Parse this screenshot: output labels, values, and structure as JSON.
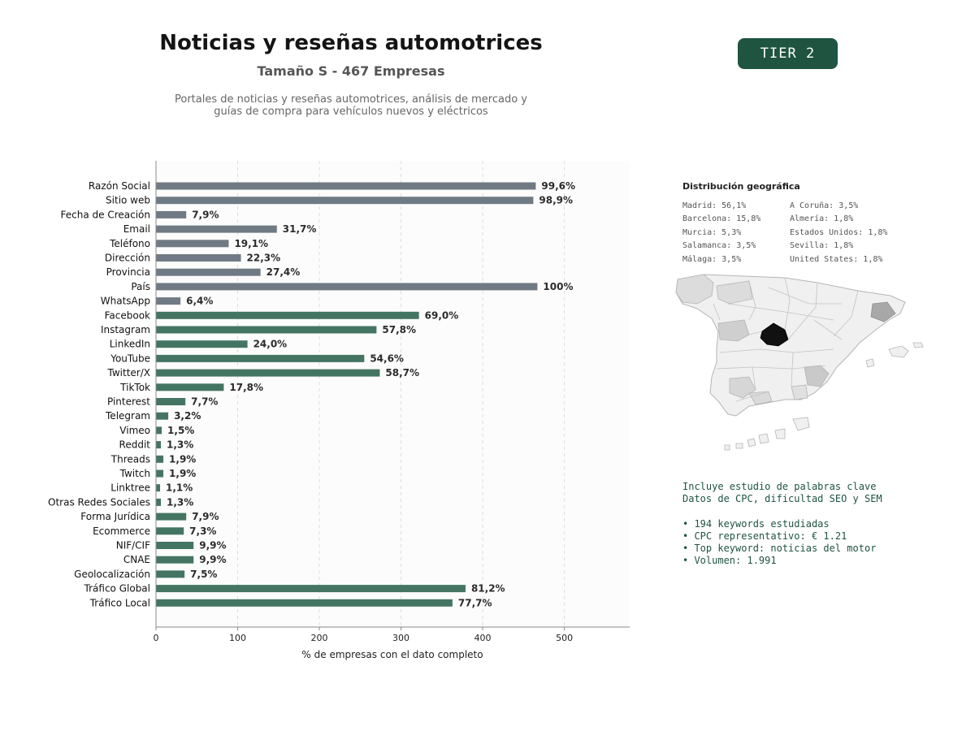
{
  "header": {
    "title": "Noticias y reseñas automotrices",
    "subtitle": "Tamaño S - 467 Empresas",
    "description_line1": "Portales de noticias y reseñas automotrices, análisis de mercado y",
    "description_line2": "guías de compra para vehículos nuevos y eléctricos",
    "tier_label": "TIER 2"
  },
  "colors": {
    "tier_bg": "#1e5440",
    "bar_gray": "#6f7a84",
    "bar_green": "#447563",
    "map_highlight": "#111111",
    "keywords_text": "#1e5440"
  },
  "chart_data": {
    "type": "bar",
    "orientation": "horizontal",
    "xlabel": "% de empresas con el dato completo",
    "ylabel": "",
    "xlim": [
      0,
      580
    ],
    "xticks": [
      0,
      100,
      200,
      300,
      400,
      500
    ],
    "grid": "vertical dashed",
    "categories": [
      "Razón Social",
      "Sitio web",
      "Fecha de Creación",
      "Email",
      "Teléfono",
      "Dirección",
      "Provincia",
      "País",
      "WhatsApp",
      "Facebook",
      "Instagram",
      "LinkedIn",
      "YouTube",
      "Twitter/X",
      "TikTok",
      "Pinterest",
      "Telegram",
      "Vimeo",
      "Reddit",
      "Threads",
      "Twitch",
      "Linktree",
      "Otras Redes Sociales",
      "Forma Jurídica",
      "Ecommerce",
      "NIF/CIF",
      "CNAE",
      "Geolocalización",
      "Tráfico Global",
      "Tráfico Local"
    ],
    "values": [
      465,
      462,
      37,
      148,
      89,
      104,
      128,
      467,
      30,
      322,
      270,
      112,
      255,
      274,
      83,
      36,
      15,
      7,
      6,
      9,
      9,
      5,
      6,
      37,
      34,
      46,
      46,
      35,
      379,
      363
    ],
    "labels": [
      "99,6%",
      "98,9%",
      "7,9%",
      "31,7%",
      "19,1%",
      "22,3%",
      "27,4%",
      "100%",
      "6,4%",
      "69,0%",
      "57,8%",
      "24,0%",
      "54,6%",
      "58,7%",
      "17,8%",
      "7,7%",
      "3,2%",
      "1,5%",
      "1,3%",
      "1,9%",
      "1,9%",
      "1,1%",
      "1,3%",
      "7,9%",
      "7,3%",
      "9,9%",
      "9,9%",
      "7,5%",
      "81,2%",
      "77,7%"
    ],
    "groups": [
      "gray",
      "gray",
      "gray",
      "gray",
      "gray",
      "gray",
      "gray",
      "gray",
      "gray",
      "green",
      "green",
      "green",
      "green",
      "green",
      "green",
      "green",
      "green",
      "green",
      "green",
      "green",
      "green",
      "green",
      "green",
      "green",
      "green",
      "green",
      "green",
      "green",
      "green",
      "green"
    ]
  },
  "geo": {
    "title": "Distribución geográfica",
    "column1": [
      "Madrid: 56,1%",
      "Barcelona: 15,8%",
      "Murcia: 5,3%",
      "Salamanca: 3,5%",
      "Málaga: 3,5%"
    ],
    "column2": [
      "A Coruña: 3,5%",
      "Almería: 1,8%",
      "Estados Unidos: 1,8%",
      "Sevilla: 1,8%",
      "United States: 1,8%"
    ]
  },
  "keywords": {
    "line1": "Incluye estudio de palabras clave",
    "line2": "Datos de CPC, dificultad SEO y SEM",
    "bullets": [
      "• 194 keywords estudiadas",
      "• CPC representativo: € 1.21",
      "• Top keyword: noticias del motor",
      "• Volumen: 1.991"
    ]
  }
}
